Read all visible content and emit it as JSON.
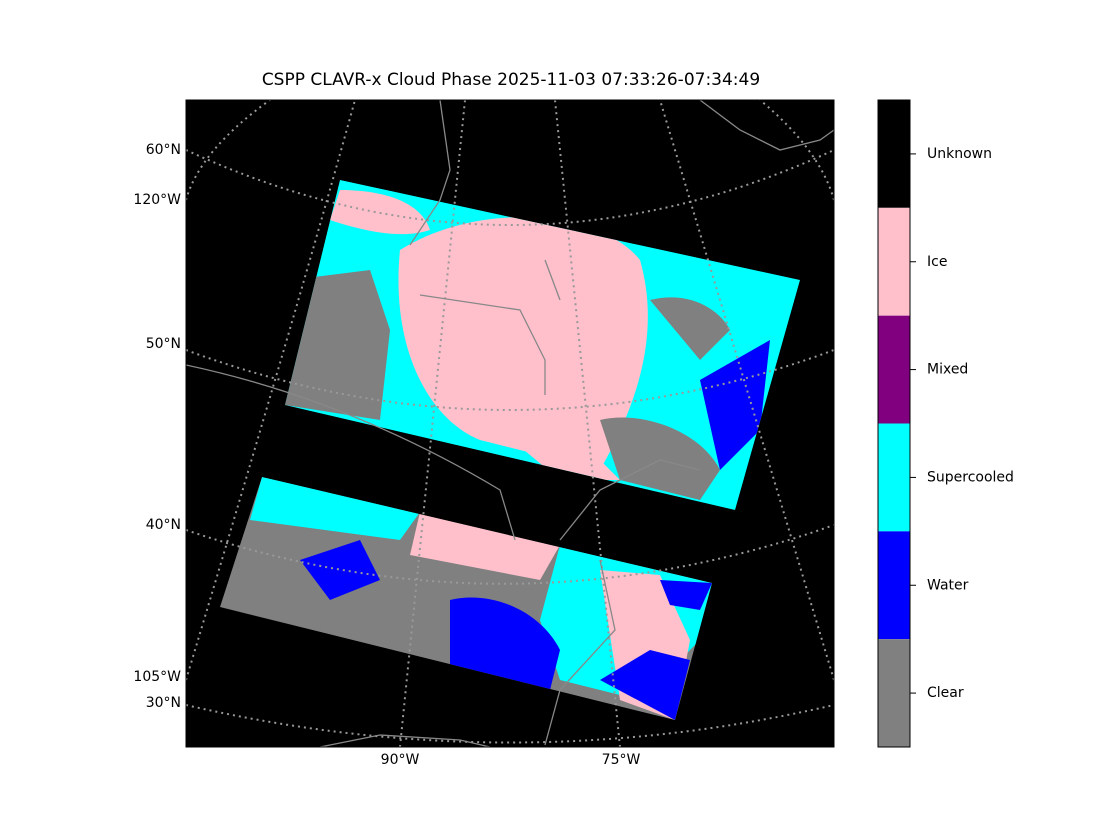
{
  "title": "CSPP CLAVR-x Cloud Phase 2025-11-03 07:33:26-07:34:49",
  "map": {
    "lat_labels": [
      "60°N",
      "50°N",
      "40°N",
      "30°N"
    ],
    "lon_left_labels": [
      "120°W",
      "105°W"
    ],
    "lon_bottom_labels": [
      "90°W",
      "75°W"
    ]
  },
  "colorbar": {
    "categories": [
      {
        "label": "Unknown",
        "color": "#000000"
      },
      {
        "label": "Ice",
        "color": "#ffc0cb"
      },
      {
        "label": "Mixed",
        "color": "#800080"
      },
      {
        "label": "Supercooled",
        "color": "#00ffff"
      },
      {
        "label": "Water",
        "color": "#0000ff"
      },
      {
        "label": "Clear",
        "color": "#808080"
      }
    ]
  }
}
